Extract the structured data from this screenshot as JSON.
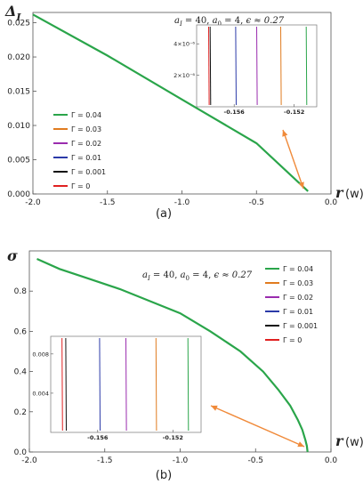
{
  "chart_data": [
    {
      "type": "line",
      "panel_label": "(a)",
      "ylabel": "Δ",
      "ylabel_sub": "I",
      "xlabel": "r",
      "xlabel_suffix": "(w)",
      "params": {
        "a_prefix": "a",
        "a_I_sub": "I",
        "a_I_rest": " = 40, ",
        "a_0_sub": "0",
        "a_0_rest": " = 4, ",
        "eps": "ϵ ≈ 0.27"
      },
      "xlim": [
        -2.0,
        0.0
      ],
      "ylim": [
        0.0,
        0.0265
      ],
      "xticks": [
        "-2.0",
        "-1.5",
        "-1.0",
        "-0.5",
        "0.0"
      ],
      "yticks": [
        "0.000",
        "0.005",
        "0.010",
        "0.015",
        "0.020",
        "0.025"
      ],
      "legend_position": "left-middle",
      "series": [
        {
          "name": "Γ = 0.04",
          "color": "#2aa54a"
        },
        {
          "name": "Γ = 0.03",
          "color": "#e07b1f"
        },
        {
          "name": "Γ = 0.02",
          "color": "#9a2cae"
        },
        {
          "name": "Γ = 0.01",
          "color": "#2b3aa8"
        },
        {
          "name": "Γ = 0.001",
          "color": "#111111"
        },
        {
          "name": "Γ =  0",
          "color": "#e02020"
        }
      ],
      "main_curve": {
        "x": [
          -2.0,
          -1.5,
          -1.0,
          -0.5,
          -0.154
        ],
        "y": [
          0.0262,
          0.0202,
          0.0138,
          0.0074,
          0.0004
        ]
      },
      "inset": {
        "xlim": [
          -0.1585,
          -0.1505
        ],
        "ylim": [
          0.0,
          5.2e-06
        ],
        "xticks": [
          "-0.156",
          "-0.152"
        ],
        "yticks": [
          "2×10⁻⁶",
          "4×10⁻⁶"
        ],
        "lines_x": [
          -0.1577,
          -0.1576,
          -0.1559,
          -0.1545,
          -0.1529,
          -0.1512
        ],
        "line_colors": [
          "#e02020",
          "#111111",
          "#2b3aa8",
          "#9a2cae",
          "#e07b1f",
          "#2aa54a"
        ]
      },
      "arrow_color": "#f08a3a"
    },
    {
      "type": "line",
      "panel_label": "(b)",
      "ylabel": "σ",
      "xlabel": "r",
      "xlabel_suffix": "(w)",
      "params": {
        "a_prefix": "a",
        "a_I_sub": "I",
        "a_I_rest": " = 40, ",
        "a_0_sub": "0",
        "a_0_rest": " = 4, ",
        "eps": "ϵ ≈ 0.27"
      },
      "xlim": [
        -2.0,
        0.0
      ],
      "ylim": [
        0.0,
        1.0
      ],
      "xticks": [
        "-2.0",
        "-1.5",
        "-1.0",
        "-0.5",
        "0.0"
      ],
      "yticks": [
        "0.0",
        "0.2",
        "0.4",
        "0.6",
        "0.8"
      ],
      "legend_position": "right-top",
      "series": [
        {
          "name": "Γ = 0.04",
          "color": "#2aa54a"
        },
        {
          "name": "Γ = 0.03",
          "color": "#e07b1f"
        },
        {
          "name": "Γ = 0.02",
          "color": "#9a2cae"
        },
        {
          "name": "Γ = 0.01",
          "color": "#2b3aa8"
        },
        {
          "name": "Γ = 0.001",
          "color": "#111111"
        },
        {
          "name": "Γ =  0",
          "color": "#e02020"
        }
      ],
      "main_curve": {
        "x": [
          -1.95,
          -1.8,
          -1.6,
          -1.4,
          -1.2,
          -1.0,
          -0.8,
          -0.6,
          -0.45,
          -0.35,
          -0.27,
          -0.22,
          -0.19,
          -0.17,
          -0.16,
          -0.155
        ],
        "y": [
          0.96,
          0.91,
          0.86,
          0.81,
          0.75,
          0.69,
          0.6,
          0.5,
          0.4,
          0.31,
          0.23,
          0.16,
          0.11,
          0.06,
          0.03,
          0.0
        ]
      },
      "inset": {
        "xlim": [
          -0.1585,
          -0.1505
        ],
        "ylim": [
          0.0,
          0.0098
        ],
        "xticks": [
          "-0.156",
          "-0.152"
        ],
        "yticks": [
          "0.004",
          "0.008"
        ],
        "lines_x": [
          -0.1579,
          -0.1577,
          -0.1559,
          -0.1545,
          -0.1529,
          -0.1512
        ],
        "line_colors": [
          "#e02020",
          "#111111",
          "#2b3aa8",
          "#9a2cae",
          "#e07b1f",
          "#2aa54a"
        ]
      },
      "arrow_color": "#f08a3a"
    }
  ]
}
